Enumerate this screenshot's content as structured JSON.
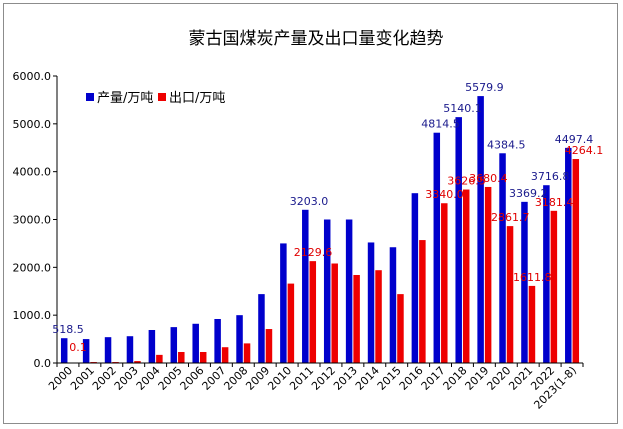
{
  "chart_data": {
    "type": "bar",
    "title": "蒙古国煤炭产量及出口量变化趋势",
    "xlabel": "",
    "ylabel": "",
    "ylim": [
      0,
      6000
    ],
    "yticks": [
      "0.0",
      "1000.0",
      "2000.0",
      "3000.0",
      "4000.0",
      "5000.0",
      "6000.0"
    ],
    "legend_position": "top-left",
    "grid": false,
    "categories": [
      "2000",
      "2001",
      "2002",
      "2003",
      "2004",
      "2005",
      "2006",
      "2007",
      "2008",
      "2009",
      "2010",
      "2011",
      "2012",
      "2013",
      "2014",
      "2015",
      "2016",
      "2017",
      "2018",
      "2019",
      "2020",
      "2021",
      "2022",
      "2023(1-8)"
    ],
    "series": [
      {
        "name": "产量/万吨",
        "color": "#0000cc",
        "values": [
          518.5,
          500,
          540,
          560,
          690,
          750,
          820,
          920,
          1000,
          1440,
          2500,
          3203.0,
          3000,
          3000,
          2520,
          2420,
          3550,
          4814.5,
          5140.1,
          5579.9,
          4384.5,
          3369.2,
          3716.8,
          4497.4
        ],
        "labels": [
          "518.5",
          "",
          "",
          "",
          "",
          "",
          "",
          "",
          "",
          "",
          "",
          "3203.0",
          "",
          "",
          "",
          "",
          "",
          "4814.5",
          "5140.1",
          "5579.9",
          "4384.5",
          "3369.2",
          "3716.8",
          "4497.4"
        ]
      },
      {
        "name": "出口/万吨",
        "color": "#ee0000",
        "values": [
          0.1,
          20,
          20,
          40,
          170,
          230,
          230,
          330,
          410,
          710,
          1660,
          2129.6,
          2080,
          1840,
          1940,
          1440,
          2570,
          3340.0,
          3626.5,
          3680.4,
          2861.7,
          1611.8,
          3181.4,
          4264.1
        ],
        "labels": [
          "0.1",
          "",
          "",
          "",
          "",
          "",
          "",
          "",
          "",
          "",
          "",
          "2129.6",
          "",
          "",
          "",
          "",
          "",
          "3340.0",
          "3626.5",
          "3680.4",
          "2861.7",
          "1611.8",
          "3181.4",
          "4264.1"
        ]
      }
    ]
  }
}
